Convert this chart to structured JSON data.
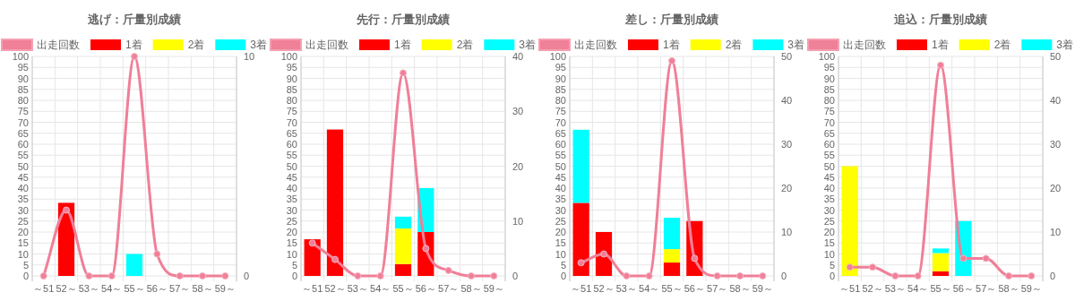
{
  "chart_data": [
    {
      "type": "bar",
      "title": "逃げ：斤量別成績",
      "categories": [
        "～51",
        "52～",
        "53～",
        "54～",
        "55～",
        "56～",
        "57～",
        "58～",
        "59～"
      ],
      "stacked": true,
      "grid": true,
      "legend": "top",
      "ylim": [
        0,
        100
      ],
      "yticks": [
        0,
        5,
        10,
        15,
        20,
        25,
        30,
        35,
        40,
        45,
        50,
        55,
        60,
        65,
        70,
        75,
        80,
        85,
        90,
        95,
        100
      ],
      "y2lim": [
        0,
        10
      ],
      "y2ticks": [
        0,
        10
      ],
      "series": [
        {
          "name": "出走回数",
          "type": "line",
          "axis": "y2",
          "marker": "circle",
          "color": "#f07f98",
          "values": [
            0,
            3,
            0,
            0,
            10,
            1,
            0,
            0,
            0
          ]
        },
        {
          "name": "1着",
          "color": "#ff0000",
          "values": [
            0,
            33.3,
            0,
            0,
            0,
            0,
            0,
            0,
            0
          ]
        },
        {
          "name": "2着",
          "color": "#ffff00",
          "values": [
            0,
            0,
            0,
            0,
            0,
            0,
            0,
            0,
            0
          ]
        },
        {
          "name": "3着",
          "color": "#00ffff",
          "values": [
            0,
            0,
            0,
            0,
            10,
            0,
            0,
            0,
            0
          ]
        }
      ]
    },
    {
      "type": "bar",
      "title": "先行：斤量別成績",
      "categories": [
        "～51",
        "52～",
        "53～",
        "54～",
        "55～",
        "56～",
        "57～",
        "58～",
        "59～"
      ],
      "stacked": true,
      "grid": true,
      "legend": "top",
      "ylim": [
        0,
        100
      ],
      "yticks": [
        0,
        5,
        10,
        15,
        20,
        25,
        30,
        35,
        40,
        45,
        50,
        55,
        60,
        65,
        70,
        75,
        80,
        85,
        90,
        95,
        100
      ],
      "y2lim": [
        0,
        40
      ],
      "y2ticks": [
        0,
        10,
        20,
        30,
        40
      ],
      "series": [
        {
          "name": "出走回数",
          "type": "line",
          "axis": "y2",
          "marker": "circle",
          "color": "#f07f98",
          "values": [
            6,
            3,
            0,
            0,
            37,
            5,
            1,
            0,
            0
          ]
        },
        {
          "name": "1着",
          "color": "#ff0000",
          "values": [
            16.7,
            66.7,
            0,
            0,
            5.4,
            20,
            0,
            0,
            0
          ]
        },
        {
          "name": "2着",
          "color": "#ffff00",
          "values": [
            0,
            0,
            0,
            0,
            16.2,
            0,
            0,
            0,
            0
          ]
        },
        {
          "name": "3着",
          "color": "#00ffff",
          "values": [
            0,
            0,
            0,
            0,
            5.4,
            20,
            0,
            0,
            0
          ]
        }
      ]
    },
    {
      "type": "bar",
      "title": "差し：斤量別成績",
      "categories": [
        "～51",
        "52～",
        "53～",
        "54～",
        "55～",
        "56～",
        "57～",
        "58～",
        "59～"
      ],
      "stacked": true,
      "grid": true,
      "legend": "top",
      "ylim": [
        0,
        100
      ],
      "yticks": [
        0,
        5,
        10,
        15,
        20,
        25,
        30,
        35,
        40,
        45,
        50,
        55,
        60,
        65,
        70,
        75,
        80,
        85,
        90,
        95,
        100
      ],
      "y2lim": [
        0,
        50
      ],
      "y2ticks": [
        0,
        10,
        20,
        30,
        40,
        50
      ],
      "series": [
        {
          "name": "出走回数",
          "type": "line",
          "axis": "y2",
          "marker": "circle",
          "color": "#f07f98",
          "values": [
            3,
            5,
            0,
            0,
            49,
            4,
            0,
            0,
            0
          ]
        },
        {
          "name": "1着",
          "color": "#ff0000",
          "values": [
            33.3,
            20,
            0,
            0,
            6.1,
            25,
            0,
            0,
            0
          ]
        },
        {
          "name": "2着",
          "color": "#ffff00",
          "values": [
            0,
            0,
            0,
            0,
            6.1,
            0,
            0,
            0,
            0
          ]
        },
        {
          "name": "3着",
          "color": "#00ffff",
          "values": [
            33.3,
            0,
            0,
            0,
            14.3,
            0,
            0,
            0,
            0
          ]
        }
      ]
    },
    {
      "type": "bar",
      "title": "追込：斤量別成績",
      "categories": [
        "～51",
        "52～",
        "53～",
        "54～",
        "55～",
        "56～",
        "57～",
        "58～",
        "59～"
      ],
      "stacked": true,
      "grid": true,
      "legend": "top",
      "ylim": [
        0,
        100
      ],
      "yticks": [
        0,
        5,
        10,
        15,
        20,
        25,
        30,
        35,
        40,
        45,
        50,
        55,
        60,
        65,
        70,
        75,
        80,
        85,
        90,
        95,
        100
      ],
      "y2lim": [
        0,
        50
      ],
      "y2ticks": [
        0,
        10,
        20,
        30,
        40,
        50
      ],
      "series": [
        {
          "name": "出走回数",
          "type": "line",
          "axis": "y2",
          "marker": "circle",
          "color": "#f07f98",
          "values": [
            2,
            2,
            0,
            0,
            48,
            4,
            4,
            0,
            0
          ]
        },
        {
          "name": "1着",
          "color": "#ff0000",
          "values": [
            0,
            0,
            0,
            0,
            2.1,
            0,
            0,
            0,
            0
          ]
        },
        {
          "name": "2着",
          "color": "#ffff00",
          "values": [
            50,
            0,
            0,
            0,
            8.3,
            0,
            0,
            0,
            0
          ]
        },
        {
          "name": "3着",
          "color": "#00ffff",
          "values": [
            0,
            0,
            0,
            0,
            2.1,
            25,
            0,
            0,
            0
          ]
        }
      ]
    }
  ]
}
